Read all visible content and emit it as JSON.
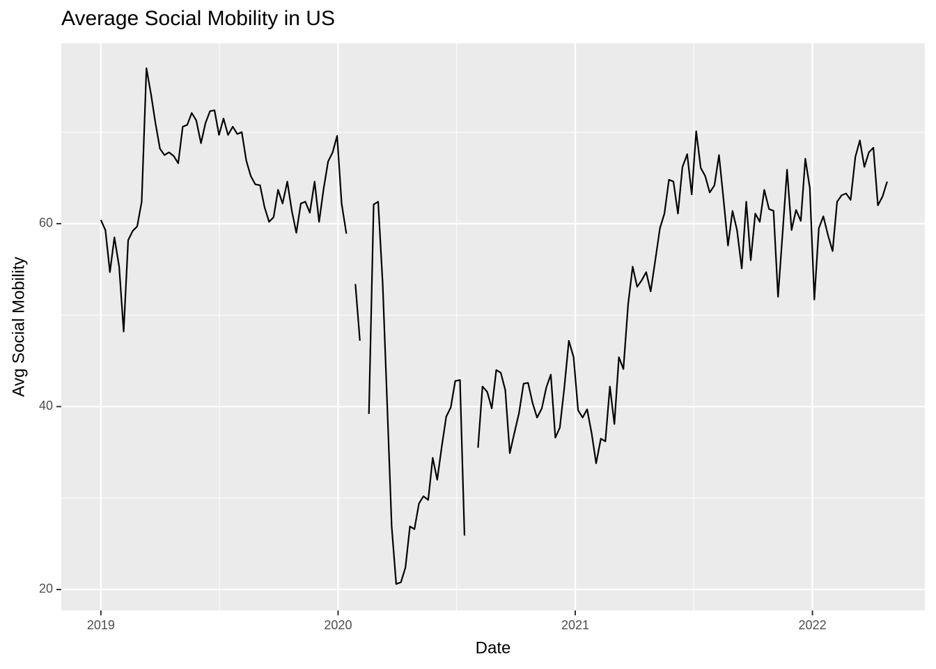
{
  "chart_data": {
    "type": "line",
    "title": "Average Social Mobility in US",
    "x_label": "Date",
    "y_label": "Avg Social Mobility",
    "x": [
      2019.0,
      2019.019,
      2019.038,
      2019.057,
      2019.077,
      2019.096,
      2019.115,
      2019.134,
      2019.153,
      2019.172,
      2019.192,
      2019.211,
      2019.23,
      2019.249,
      2019.268,
      2019.287,
      2019.307,
      2019.326,
      2019.345,
      2019.364,
      2019.383,
      2019.402,
      2019.422,
      2019.441,
      2019.46,
      2019.479,
      2019.498,
      2019.517,
      2019.536,
      2019.556,
      2019.575,
      2019.594,
      2019.613,
      2019.632,
      2019.651,
      2019.671,
      2019.69,
      2019.709,
      2019.728,
      2019.747,
      2019.766,
      2019.786,
      2019.805,
      2019.824,
      2019.843,
      2019.862,
      2019.881,
      2019.901,
      2019.92,
      2019.939,
      2019.958,
      2019.977,
      2019.996,
      2020.015,
      2020.035,
      2020.054,
      2020.073,
      2020.092,
      2020.111,
      2020.13,
      2020.15,
      2020.169,
      2020.188,
      2020.207,
      2020.226,
      2020.245,
      2020.265,
      2020.284,
      2020.303,
      2020.322,
      2020.341,
      2020.36,
      2020.38,
      2020.399,
      2020.418,
      2020.437,
      2020.456,
      2020.475,
      2020.494,
      2020.514,
      2020.533,
      2020.552,
      2020.571,
      2020.59,
      2020.609,
      2020.629,
      2020.648,
      2020.667,
      2020.686,
      2020.705,
      2020.724,
      2020.744,
      2020.763,
      2020.782,
      2020.801,
      2020.82,
      2020.839,
      2020.859,
      2020.878,
      2020.897,
      2020.916,
      2020.935,
      2020.954,
      2020.973,
      2020.993,
      2021.012,
      2021.031,
      2021.05,
      2021.069,
      2021.088,
      2021.108,
      2021.127,
      2021.146,
      2021.165,
      2021.184,
      2021.203,
      2021.223,
      2021.242,
      2021.261,
      2021.28,
      2021.299,
      2021.318,
      2021.338,
      2021.357,
      2021.376,
      2021.395,
      2021.414,
      2021.433,
      2021.452,
      2021.472,
      2021.491,
      2021.51,
      2021.529,
      2021.548,
      2021.567,
      2021.587,
      2021.606,
      2021.625,
      2021.644,
      2021.663,
      2021.682,
      2021.702,
      2021.721,
      2021.74,
      2021.759,
      2021.778,
      2021.797,
      2021.817,
      2021.836,
      2021.855,
      2021.874,
      2021.893,
      2021.912,
      2021.931,
      2021.951,
      2021.97,
      2021.989,
      2022.008,
      2022.027,
      2022.046,
      2022.066,
      2022.085,
      2022.104,
      2022.123,
      2022.142,
      2022.161,
      2022.181,
      2022.2,
      2022.219,
      2022.238,
      2022.257,
      2022.276,
      2022.296,
      2022.315
    ],
    "values": [
      60.4,
      59.3,
      54.7,
      58.5,
      55.3,
      48.2,
      58.2,
      59.2,
      59.7,
      62.4,
      77.0,
      74.2,
      71.0,
      68.2,
      67.5,
      67.8,
      67.4,
      66.6,
      70.6,
      70.8,
      72.1,
      71.3,
      68.8,
      71.0,
      72.3,
      72.4,
      69.7,
      71.5,
      69.7,
      70.6,
      69.8,
      70.0,
      66.9,
      65.2,
      64.3,
      64.2,
      61.8,
      60.2,
      60.7,
      63.7,
      62.2,
      64.6,
      61.4,
      59.0,
      62.2,
      62.4,
      61.2,
      64.6,
      60.2,
      63.8,
      66.8,
      67.8,
      69.6,
      62.2,
      58.9,
      null,
      53.4,
      47.2,
      null,
      39.2,
      62.1,
      62.4,
      53.5,
      40.3,
      26.9,
      20.6,
      20.8,
      22.4,
      26.9,
      26.6,
      29.4,
      30.2,
      29.8,
      34.4,
      32.0,
      35.6,
      38.9,
      39.9,
      42.8,
      42.9,
      25.9,
      null,
      null,
      35.5,
      42.2,
      41.6,
      39.8,
      44.0,
      43.7,
      41.8,
      34.9,
      37.2,
      39.3,
      42.5,
      42.6,
      40.4,
      38.8,
      39.8,
      42.1,
      43.5,
      36.6,
      37.7,
      42.1,
      47.2,
      45.4,
      39.6,
      38.8,
      39.7,
      37.1,
      33.8,
      36.5,
      36.2,
      42.2,
      38.1,
      45.4,
      44.1,
      51.2,
      55.3,
      53.1,
      53.8,
      54.7,
      52.6,
      56.1,
      59.5,
      61.1,
      64.8,
      64.6,
      61.1,
      66.2,
      67.6,
      63.2,
      70.1,
      66.1,
      65.2,
      63.4,
      64.2,
      67.5,
      62.7,
      57.6,
      61.4,
      59.3,
      55.1,
      62.4,
      56.0,
      61.1,
      60.2,
      63.7,
      61.6,
      61.4,
      52.0,
      58.9,
      65.9,
      59.3,
      61.5,
      60.3,
      67.1,
      63.9,
      51.7,
      59.5,
      60.8,
      58.7,
      57.0,
      62.4,
      63.1,
      63.3,
      62.6,
      67.3,
      69.1,
      66.2,
      67.8,
      68.3,
      62.0,
      63.0,
      64.6
    ],
    "color": "#000000",
    "xlim": [
      2018.833,
      2022.474
    ],
    "xticks": [
      2019,
      2020,
      2021,
      2022
    ],
    "ylim": [
      17.71,
      79.73
    ],
    "yticks": [
      20,
      40,
      60
    ],
    "grid": true
  }
}
